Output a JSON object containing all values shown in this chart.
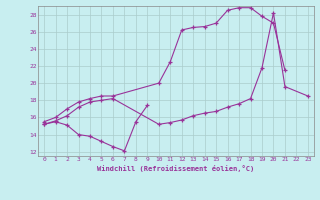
{
  "xlabel": "Windchill (Refroidissement éolien,°C)",
  "bg_color": "#c8eef0",
  "line_color": "#993399",
  "grid_color": "#aacccc",
  "xlim": [
    -0.5,
    23.5
  ],
  "ylim": [
    11.5,
    29
  ],
  "xticks": [
    0,
    1,
    2,
    3,
    4,
    5,
    6,
    7,
    8,
    9,
    10,
    11,
    12,
    13,
    14,
    15,
    16,
    17,
    18,
    19,
    20,
    21,
    22,
    23
  ],
  "yticks": [
    12,
    14,
    16,
    18,
    20,
    22,
    24,
    26,
    28
  ],
  "s1_x": [
    0,
    1,
    2,
    3,
    4,
    5,
    6,
    7,
    8,
    9
  ],
  "s1_y": [
    15.2,
    15.5,
    15.1,
    14.0,
    13.8,
    13.2,
    12.6,
    12.1,
    15.5,
    17.4
  ],
  "s2_x": [
    0,
    1,
    2,
    3,
    4,
    5,
    6,
    10,
    11,
    12,
    13,
    14,
    15,
    16,
    17,
    18,
    19,
    20,
    21
  ],
  "s2_y": [
    15.5,
    16.0,
    17.0,
    17.8,
    18.2,
    18.5,
    18.5,
    20.0,
    22.5,
    26.2,
    26.5,
    26.6,
    27.0,
    28.5,
    28.8,
    28.8,
    27.8,
    27.0,
    21.5
  ],
  "s3_x": [
    0,
    1,
    2,
    3,
    4,
    5,
    6,
    10,
    11,
    12,
    13,
    14,
    15,
    16,
    17,
    18,
    19,
    20,
    21,
    23
  ],
  "s3_y": [
    15.2,
    15.6,
    16.2,
    17.2,
    17.8,
    18.0,
    18.2,
    15.2,
    15.4,
    15.7,
    16.2,
    16.5,
    16.7,
    17.2,
    17.6,
    18.2,
    21.8,
    28.2,
    19.6,
    18.5
  ]
}
